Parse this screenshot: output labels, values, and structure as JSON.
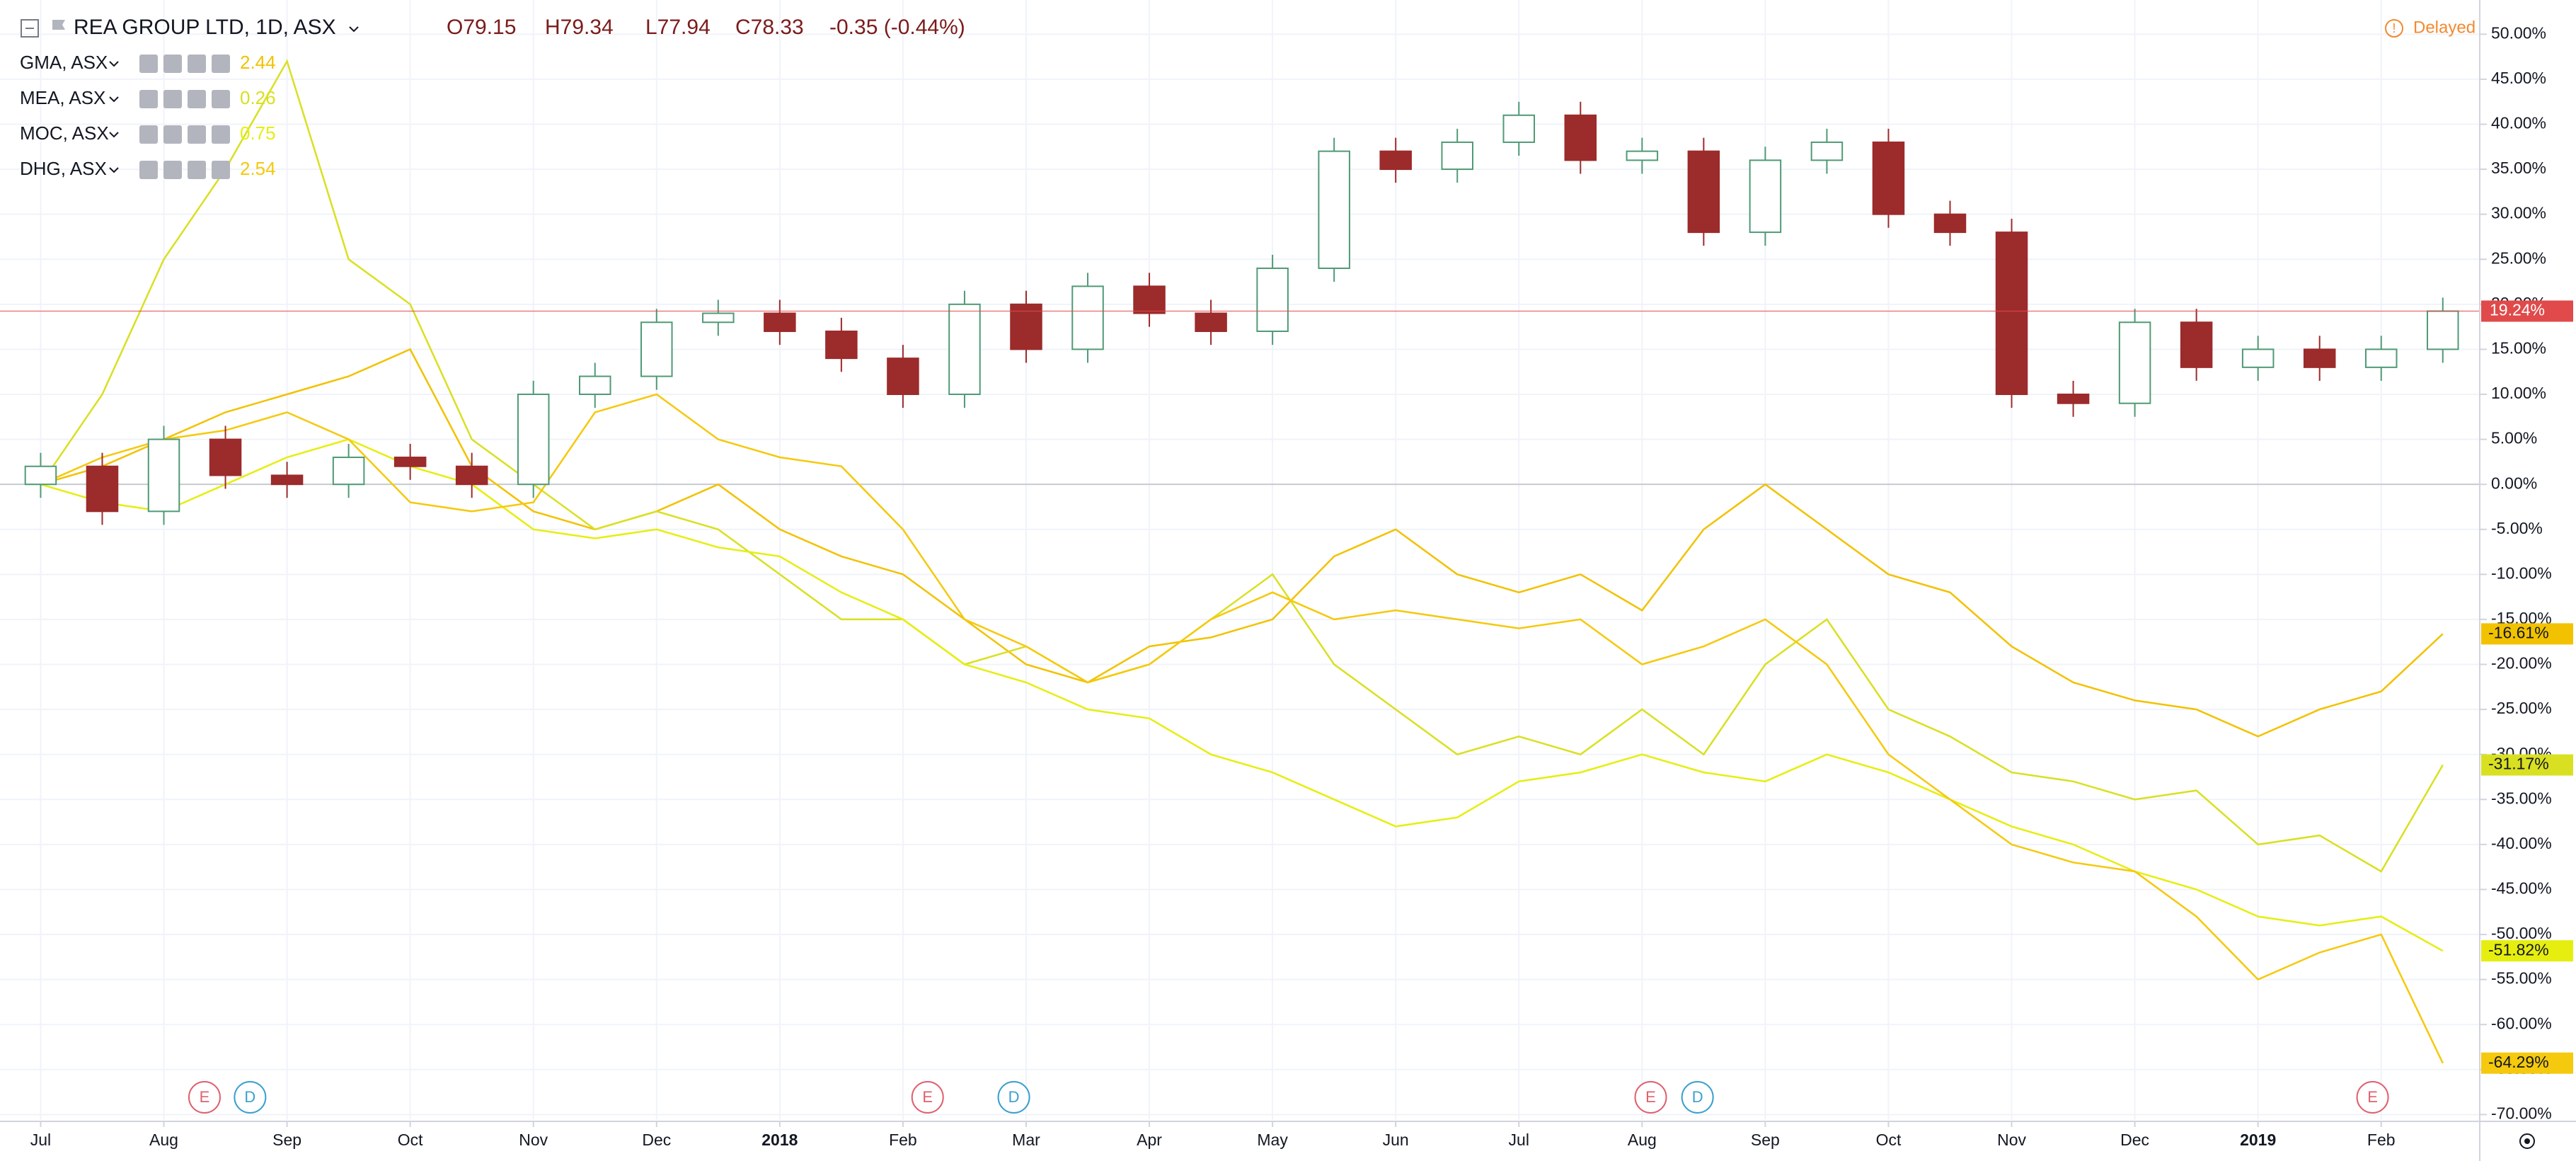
{
  "chart_data": {
    "type": "candlestick",
    "header": {
      "symbol": "REA GROUP LTD, 1D, ASX",
      "ohlc": [
        "O79.15",
        "H79.34",
        "L77.94",
        "C78.33"
      ],
      "change": "-0.35 (-0.44%)",
      "status": "Delayed"
    },
    "x": [
      0,
      0.5,
      1,
      1.5,
      2,
      2.5,
      3,
      3.5,
      4,
      4.5,
      5,
      5.5,
      6,
      6.5,
      7,
      7.5,
      8,
      8.5,
      9,
      9.5,
      10,
      10.5,
      11,
      11.5,
      12,
      12.5,
      13,
      13.5,
      14,
      14.5,
      15,
      15.5,
      16,
      16.5,
      17,
      17.5,
      18,
      18.5,
      19,
      19.5
    ],
    "xlim": [
      -0.33,
      19.8
    ],
    "xticks": [
      {
        "value": 0,
        "label": "Jul"
      },
      {
        "value": 1,
        "label": "Aug"
      },
      {
        "value": 2,
        "label": "Sep"
      },
      {
        "value": 3,
        "label": "Oct"
      },
      {
        "value": 4,
        "label": "Nov"
      },
      {
        "value": 5,
        "label": "Dec"
      },
      {
        "value": 6,
        "label": "2018"
      },
      {
        "value": 7,
        "label": "Feb"
      },
      {
        "value": 8,
        "label": "Mar"
      },
      {
        "value": 9,
        "label": "Apr"
      },
      {
        "value": 10,
        "label": "May"
      },
      {
        "value": 11,
        "label": "Jun"
      },
      {
        "value": 12,
        "label": "Jul"
      },
      {
        "value": 13,
        "label": "Aug"
      },
      {
        "value": 14,
        "label": "Sep"
      },
      {
        "value": 15,
        "label": "Oct"
      },
      {
        "value": 16,
        "label": "Nov"
      },
      {
        "value": 17,
        "label": "Dec"
      },
      {
        "value": 18,
        "label": "2019"
      },
      {
        "value": 19,
        "label": "Feb"
      }
    ],
    "ylim": [
      -70.6,
      53.8
    ],
    "yticks": [
      {
        "value": 50,
        "label": "50.00%"
      },
      {
        "value": 45,
        "label": "45.00%"
      },
      {
        "value": 40,
        "label": "40.00%"
      },
      {
        "value": 35,
        "label": "35.00%"
      },
      {
        "value": 30,
        "label": "30.00%"
      },
      {
        "value": 25,
        "label": "25.00%"
      },
      {
        "value": 20,
        "label": "20.00%"
      },
      {
        "value": 15,
        "label": "15.00%"
      },
      {
        "value": 10,
        "label": "10.00%"
      },
      {
        "value": 5,
        "label": "5.00%"
      },
      {
        "value": 0,
        "label": "0.00%"
      },
      {
        "value": -5,
        "label": "-5.00%"
      },
      {
        "value": -10,
        "label": "-10.00%"
      },
      {
        "value": -15,
        "label": "-15.00%"
      },
      {
        "value": -20,
        "label": "-20.00%"
      },
      {
        "value": -25,
        "label": "-25.00%"
      },
      {
        "value": -30,
        "label": "-30.00%"
      },
      {
        "value": -35,
        "label": "-35.00%"
      },
      {
        "value": -40,
        "label": "-40.00%"
      },
      {
        "value": -45,
        "label": "-45.00%"
      },
      {
        "value": -50,
        "label": "-50.00%"
      },
      {
        "value": -55,
        "label": "-55.00%"
      },
      {
        "value": -60,
        "label": "-60.00%"
      },
      {
        "value": -65,
        "label": "-65.00%"
      },
      {
        "value": -70,
        "label": "-70.00%"
      }
    ],
    "grid": true,
    "candles": {
      "up_color": "#4f9a76",
      "down_color": "#9c2b2b",
      "open": [
        0,
        2,
        -3,
        5,
        1,
        0,
        3,
        2,
        0,
        10,
        12,
        18,
        19,
        17,
        14,
        10,
        20,
        15,
        22,
        19,
        17,
        24,
        37,
        35,
        38,
        41,
        36,
        37,
        28,
        36,
        38,
        30,
        28,
        10,
        9,
        18,
        13,
        15,
        13,
        15
      ],
      "high": [
        3.5,
        3.5,
        6.5,
        6.5,
        2.5,
        4.5,
        4.5,
        3.5,
        11.5,
        13.5,
        19.5,
        20.5,
        20.5,
        18.5,
        15.5,
        21.5,
        21.5,
        23.5,
        23.5,
        20.5,
        25.5,
        38.5,
        38.5,
        39.5,
        42.5,
        42.5,
        38.5,
        38.5,
        37.5,
        39.5,
        39.5,
        31.5,
        29.5,
        11.5,
        19.5,
        19.5,
        16.5,
        16.5,
        16.5,
        20.74
      ],
      "low": [
        -1.5,
        -4.5,
        -4.5,
        -0.5,
        -1.5,
        -1.5,
        0.5,
        -1.5,
        -1.5,
        8.5,
        10.5,
        16.5,
        15.5,
        12.5,
        8.5,
        8.5,
        13.5,
        13.5,
        17.5,
        15.5,
        15.5,
        22.5,
        33.5,
        33.5,
        36.5,
        34.5,
        34.5,
        26.5,
        26.5,
        34.5,
        28.5,
        26.5,
        8.5,
        7.5,
        7.5,
        11.5,
        11.5,
        11.5,
        11.5,
        13.5
      ],
      "close": [
        2,
        -3,
        5,
        1,
        0,
        3,
        2,
        0,
        10,
        12,
        18,
        19,
        17,
        14,
        10,
        20,
        15,
        22,
        19,
        17,
        24,
        37,
        35,
        38,
        41,
        36,
        37,
        28,
        36,
        38,
        30,
        28,
        10,
        9,
        18,
        13,
        15,
        13,
        15,
        19.24
      ],
      "last_label": "19.24%",
      "last_color": "#e04a4a"
    },
    "series": [
      {
        "name": "GMA, ASX",
        "last_price": 2.44,
        "color": "#f2c200",
        "values": [
          0,
          2,
          5,
          8,
          10,
          12,
          15,
          2,
          -3,
          -5,
          -3,
          0,
          -5,
          -8,
          -10,
          -15,
          -20,
          -22,
          -18,
          -17,
          -15,
          -8,
          -5,
          -10,
          -12,
          -10,
          -14,
          -5,
          0,
          -5,
          -10,
          -12,
          -18,
          -22,
          -24,
          -25,
          -28,
          -25,
          -23,
          -16.61
        ],
        "value_label": "-16.61%"
      },
      {
        "name": "MEA, ASX",
        "last_price": 0.26,
        "color": "#d9e021",
        "values": [
          0,
          10,
          25,
          35,
          47,
          25,
          20,
          5,
          0,
          -5,
          -3,
          -5,
          -10,
          -15,
          -15,
          -20,
          -18,
          -22,
          -20,
          -15,
          -10,
          -20,
          -25,
          -30,
          -28,
          -30,
          -25,
          -30,
          -20,
          -15,
          -25,
          -28,
          -32,
          -33,
          -35,
          -34,
          -40,
          -39,
          -43,
          -31.17
        ],
        "value_label": "-31.17%"
      },
      {
        "name": "MOC, ASX",
        "last_price": 0.75,
        "color": "#e6ee10",
        "values": [
          0,
          -2,
          -3,
          0,
          3,
          5,
          2,
          0,
          -5,
          -6,
          -5,
          -7,
          -8,
          -12,
          -15,
          -20,
          -22,
          -25,
          -26,
          -30,
          -32,
          -35,
          -38,
          -37,
          -33,
          -32,
          -30,
          -32,
          -33,
          -30,
          -32,
          -35,
          -38,
          -40,
          -43,
          -45,
          -48,
          -49,
          -48,
          -51.82
        ],
        "value_label": "-51.82%"
      },
      {
        "name": "DHG, ASX",
        "last_price": 2.54,
        "color": "#f5c90d",
        "values": [
          0,
          3,
          5,
          6,
          8,
          5,
          -2,
          -3,
          -2,
          8,
          10,
          5,
          3,
          2,
          -5,
          -15,
          -18,
          -22,
          -20,
          -15,
          -12,
          -15,
          -14,
          -15,
          -16,
          -15,
          -20,
          -18,
          -15,
          -20,
          -30,
          -35,
          -40,
          -42,
          -43,
          -48,
          -55,
          -52,
          -50,
          -64.29
        ],
        "value_label": "-64.29%"
      }
    ],
    "events": [
      {
        "x": 1.33,
        "label": "E",
        "color": "#e0606e"
      },
      {
        "x": 1.7,
        "label": "D",
        "color": "#3a9fd0"
      },
      {
        "x": 7.2,
        "label": "E",
        "color": "#e0606e"
      },
      {
        "x": 7.9,
        "label": "D",
        "color": "#3a9fd0"
      },
      {
        "x": 13.07,
        "label": "E",
        "color": "#e0606e"
      },
      {
        "x": 13.45,
        "label": "D",
        "color": "#3a9fd0"
      },
      {
        "x": 18.93,
        "label": "E",
        "color": "#e0606e"
      }
    ]
  }
}
